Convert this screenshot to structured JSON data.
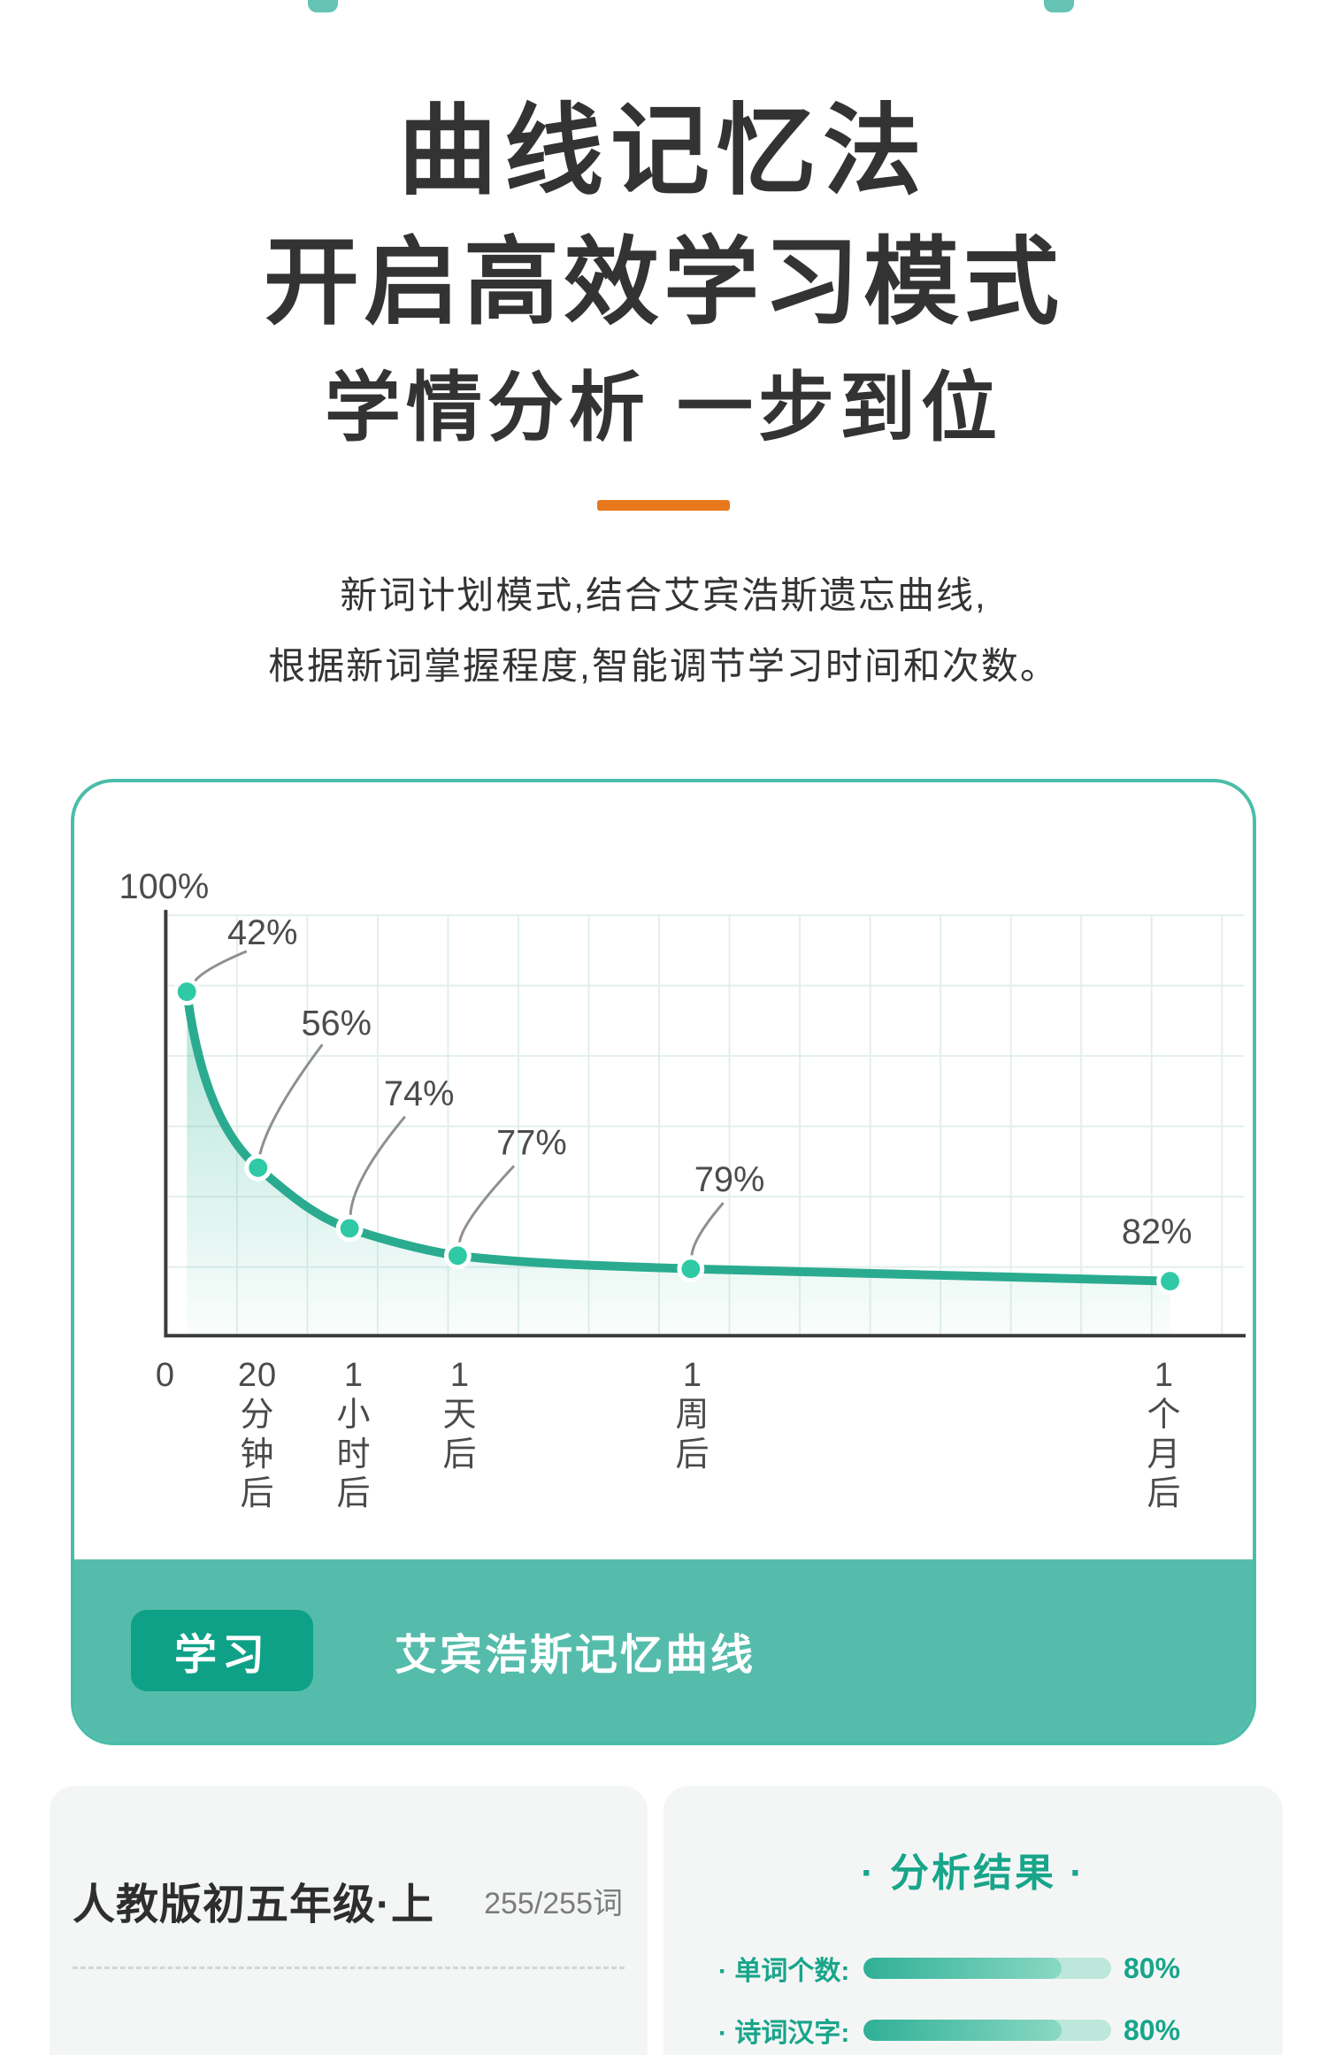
{
  "hero": {
    "title_line1": "曲线记忆法",
    "title_line2": "开启高效学习模式",
    "subtitle": "学情分析 一步到位",
    "description_line1": "新词计划模式,结合艾宾浩斯遗忘曲线,",
    "description_line2": "根据新词掌握程度,智能调节学习时间和次数。"
  },
  "chart_data": {
    "type": "line",
    "title": "艾宾浩斯记忆曲线",
    "badge": "学习",
    "x_categories": [
      "0",
      "20分钟后",
      "1小时后",
      "1天后",
      "1周后",
      "1个月后"
    ],
    "x_tick_lines": [
      [
        "0"
      ],
      [
        "20",
        "分",
        "钟",
        "后"
      ],
      [
        "1",
        "小",
        "时",
        "后"
      ],
      [
        "1",
        "天",
        "后"
      ],
      [
        "1",
        "周",
        "后"
      ],
      [
        "1",
        "个",
        "月",
        "后"
      ]
    ],
    "start_label": "100%",
    "point_labels": [
      "42%",
      "56%",
      "74%",
      "77%",
      "79%",
      "82%"
    ],
    "retention_values": [
      100,
      42,
      56,
      74,
      77,
      79,
      82
    ],
    "ylim": [
      0,
      100
    ],
    "grid": true,
    "legend_position": "bottom",
    "curve_color": "#2aab8f",
    "dot_color": "#2fc9a6",
    "accent_color": "#4cbcaa"
  },
  "bottom": {
    "textbook_card": {
      "title": "人教版初五年级·上",
      "word_count": "255/255词"
    },
    "analysis_card": {
      "title": "· 分析结果 ·",
      "rows": [
        {
          "label": "· 单词个数:",
          "percent_label": "80%",
          "value": 80
        },
        {
          "label": "· 诗词汉字:",
          "percent_label": "80%",
          "value": 80
        }
      ]
    }
  },
  "colors": {
    "accent_teal": "#4cbcaa",
    "band_teal": "#55bcab",
    "button_teal": "#0fa188",
    "orange_divider": "#e7791c",
    "text_dark": "#333333"
  }
}
